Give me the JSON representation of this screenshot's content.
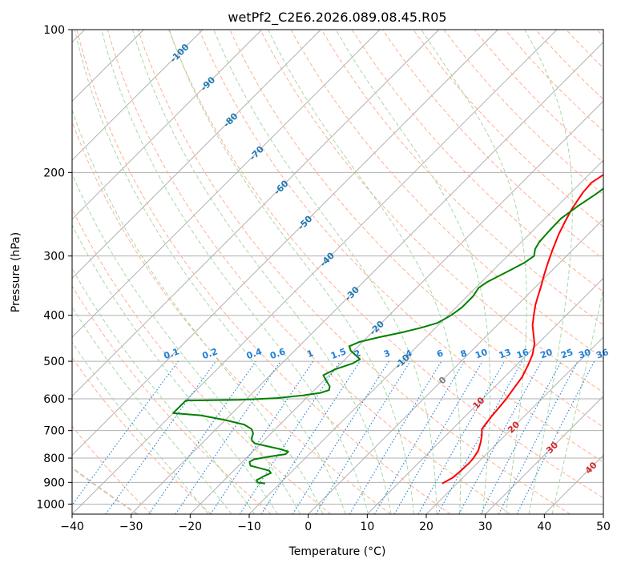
{
  "chart_data": {
    "type": "line",
    "title": "wetPf2_C2E6.2026.089.08.45.R05",
    "xlabel": "Temperature (°C)",
    "ylabel": "Pressure (hPa)",
    "xlim": [
      -40,
      50
    ],
    "ylim": [
      1050,
      100
    ],
    "x_ticks": [
      "−40",
      "−30",
      "−20",
      "−10",
      "0",
      "10",
      "20",
      "30",
      "40",
      "50"
    ],
    "x_tick_values": [
      -40,
      -30,
      -20,
      -10,
      0,
      10,
      20,
      30,
      40,
      50
    ],
    "y_ticks": [
      "100",
      "200",
      "300",
      "400",
      "500",
      "600",
      "700",
      "800",
      "900",
      "1000"
    ],
    "y_tick_values": [
      100,
      200,
      300,
      400,
      500,
      600,
      700,
      800,
      900,
      1000
    ],
    "skew_isotherm_labels": [
      "-100",
      "-90",
      "-80",
      "-70",
      "-60",
      "-50",
      "-40",
      "-30",
      "-20",
      "-10"
    ],
    "skew_isotherm_label_values": [
      -100,
      -90,
      -80,
      -70,
      -60,
      -50,
      -40,
      -30,
      -20,
      -10
    ],
    "isotherm_label_extra": "0",
    "mixing_ratio_labels": [
      "0.1",
      "0.2",
      "0.4",
      "0.6",
      "1",
      "1.5",
      "2",
      "3",
      "4",
      "6",
      "8",
      "10",
      "13",
      "16",
      "20",
      "25",
      "30",
      "36"
    ],
    "mixing_ratio_label_x": [
      -23,
      -16.5,
      -9,
      -5,
      0.5,
      5.3,
      8.5,
      13.5,
      17.2,
      22.5,
      26.5,
      29.5,
      33.5,
      36.5,
      40.5,
      44,
      47,
      50
    ],
    "dry_adiabat_labels": [
      "10",
      "20",
      "30",
      "40"
    ],
    "series": [
      {
        "name": "Temperature",
        "color": "#ff0000",
        "points": [
          [
            17.5,
            905
          ],
          [
            18.3,
            880
          ],
          [
            18.5,
            850
          ],
          [
            18.6,
            820
          ],
          [
            18.5,
            800
          ],
          [
            18.0,
            770
          ],
          [
            17.0,
            740
          ],
          [
            16.0,
            715
          ],
          [
            15.0,
            695
          ],
          [
            14.8,
            680
          ],
          [
            14.5,
            655
          ],
          [
            14.2,
            620
          ],
          [
            14.0,
            600
          ],
          [
            13.5,
            570
          ],
          [
            13.0,
            540
          ],
          [
            12.0,
            510
          ],
          [
            11.0,
            485
          ],
          [
            9.5,
            460
          ],
          [
            7.8,
            440
          ],
          [
            6.0,
            420
          ],
          [
            4.5,
            400
          ],
          [
            3.0,
            380
          ],
          [
            2.0,
            365
          ],
          [
            1.0,
            350
          ],
          [
            -0.5,
            330
          ],
          [
            -2.0,
            310
          ],
          [
            -3.5,
            290
          ],
          [
            -5.0,
            270
          ],
          [
            -6.0,
            255
          ],
          [
            -7.0,
            240
          ],
          [
            -7.5,
            230
          ],
          [
            -8.0,
            220
          ],
          [
            -8.2,
            210
          ],
          [
            -7.5,
            202
          ],
          [
            -5.5,
            195
          ],
          [
            -2.5,
            188
          ],
          [
            0.5,
            180
          ],
          [
            3.5,
            172
          ],
          [
            6.5,
            163
          ],
          [
            9.5,
            155
          ],
          [
            12.0,
            147
          ],
          [
            14.5,
            139
          ],
          [
            16.5,
            131
          ],
          [
            18.0,
            124
          ],
          [
            19.5,
            117
          ],
          [
            20.5,
            110
          ],
          [
            21.2,
            105
          ],
          [
            21.8,
            100
          ]
        ]
      },
      {
        "name": "Dewpoint",
        "color": "#008000",
        "points": [
          [
            -12.5,
            905
          ],
          [
            -14.0,
            900
          ],
          [
            -14.5,
            890
          ],
          [
            -14.0,
            875
          ],
          [
            -13.3,
            860
          ],
          [
            -14.0,
            850
          ],
          [
            -16.0,
            840
          ],
          [
            -18.0,
            830
          ],
          [
            -18.8,
            815
          ],
          [
            -18.5,
            805
          ],
          [
            -16.5,
            795
          ],
          [
            -14.0,
            785
          ],
          [
            -14.0,
            775
          ],
          [
            -16.0,
            765
          ],
          [
            -18.5,
            755
          ],
          [
            -21.0,
            745
          ],
          [
            -22.0,
            735
          ],
          [
            -22.5,
            725
          ],
          [
            -23.0,
            710
          ],
          [
            -24.0,
            695
          ],
          [
            -26.0,
            680
          ],
          [
            -30.0,
            665
          ],
          [
            -35.0,
            650
          ],
          [
            -40.0,
            643
          ],
          [
            -40.0,
            605
          ],
          [
            -31.0,
            603
          ],
          [
            -25.0,
            598
          ],
          [
            -21.0,
            590
          ],
          [
            -18.5,
            583
          ],
          [
            -17.5,
            575
          ],
          [
            -18.0,
            565
          ],
          [
            -19.5,
            550
          ],
          [
            -21.0,
            535
          ],
          [
            -20.0,
            520
          ],
          [
            -18.0,
            505
          ],
          [
            -17.5,
            495
          ],
          [
            -19.0,
            485
          ],
          [
            -20.5,
            475
          ],
          [
            -21.5,
            465
          ],
          [
            -20.5,
            455
          ],
          [
            -18.0,
            445
          ],
          [
            -15.0,
            435
          ],
          [
            -12.5,
            425
          ],
          [
            -10.5,
            415
          ],
          [
            -9.5,
            400
          ],
          [
            -9.0,
            385
          ],
          [
            -9.0,
            365
          ],
          [
            -9.5,
            350
          ],
          [
            -9.0,
            340
          ],
          [
            -7.5,
            325
          ],
          [
            -6.0,
            310
          ],
          [
            -5.5,
            300
          ],
          [
            -6.5,
            290
          ],
          [
            -7.0,
            280
          ],
          [
            -7.2,
            265
          ],
          [
            -7.3,
            250
          ],
          [
            -6.5,
            235
          ],
          [
            -5.5,
            222
          ],
          [
            -4.8,
            210
          ],
          [
            -5.0,
            200
          ],
          [
            -5.5,
            193
          ],
          [
            -5.5,
            185
          ],
          [
            -6.0,
            178
          ],
          [
            -6.8,
            172
          ],
          [
            -7.0,
            165
          ],
          [
            -7.0,
            158
          ],
          [
            -6.5,
            150
          ],
          [
            -5.0,
            142
          ],
          [
            -3.5,
            134
          ],
          [
            -1.5,
            125
          ],
          [
            0.5,
            117
          ],
          [
            2.5,
            110
          ],
          [
            4.5,
            104
          ],
          [
            5.5,
            100
          ]
        ]
      }
    ],
    "colors": {
      "isobar": "#b0b0b0",
      "isotherm": "#a8a8a8",
      "dry_adiabat": "#ffb090",
      "moist_adiabat": "#a6d8a6",
      "mixing_ratio": "#1e7fd6",
      "isotherm_label": "#1f77b4",
      "dry_adiabat_label": "#d62728",
      "zero_label": "#7f7f7f",
      "dendritic_curve": "#d9c3a8"
    }
  }
}
